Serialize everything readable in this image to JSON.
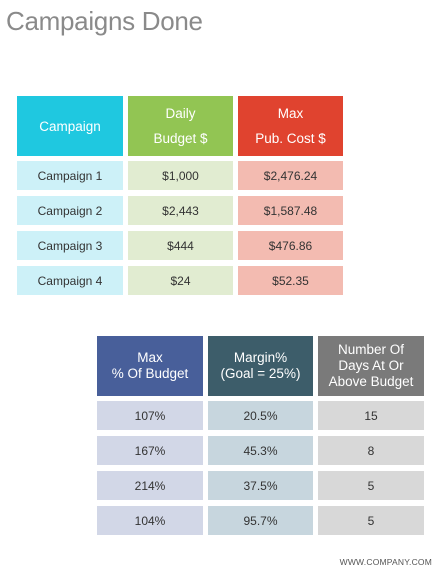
{
  "title": "Campaigns Done",
  "table1": {
    "headers": [
      {
        "line1": "Campaign",
        "line2": ""
      },
      {
        "line1": "Daily",
        "line2": "Budget $"
      },
      {
        "line1": "Max",
        "line2": "Pub. Cost $"
      }
    ],
    "header_colors": [
      "#1fc8e0",
      "#92c553",
      "#e0432f"
    ],
    "cell_colors": [
      "#cdf1f8",
      "#e1ecd1",
      "#f3bbb1"
    ],
    "rows": [
      [
        "Campaign 1",
        "$1,000",
        "$2,476.24"
      ],
      [
        "Campaign 2",
        "$2,443",
        "$1,587.48"
      ],
      [
        "Campaign 3",
        "$444",
        "$476.86"
      ],
      [
        "Campaign 4",
        "$24",
        "$52.35"
      ]
    ]
  },
  "table2": {
    "headers": [
      {
        "lines": [
          "Max",
          "% Of Budget"
        ]
      },
      {
        "lines": [
          "Margin%",
          "(Goal = 25%)"
        ]
      },
      {
        "lines": [
          "Number Of",
          "Days At Or",
          "Above Budget"
        ]
      }
    ],
    "header_colors": [
      "#485f9a",
      "#3d5d6a",
      "#7a7a7a"
    ],
    "cell_colors": [
      "#d2d7e7",
      "#c7d6de",
      "#d8d8d8"
    ],
    "rows": [
      [
        "107%",
        "20.5%",
        "15"
      ],
      [
        "167%",
        "45.3%",
        "8"
      ],
      [
        "214%",
        "37.5%",
        "5"
      ],
      [
        "104%",
        "95.7%",
        "5"
      ]
    ]
  },
  "footer": "WWW.COMPANY.COM"
}
